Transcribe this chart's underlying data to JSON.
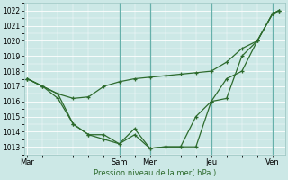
{
  "xlabel": "Pression niveau de la mer( hPa )",
  "bg_color": "#cce8e6",
  "grid_color": "#aad4d0",
  "vline_color": "#66b0aa",
  "line_color": "#2d6b2d",
  "ylim": [
    1012.5,
    1022.5
  ],
  "yticks": [
    1013,
    1014,
    1015,
    1016,
    1017,
    1018,
    1019,
    1020,
    1021,
    1022
  ],
  "xtick_labels": [
    "Mar",
    "Sam",
    "Mer",
    "Jeu",
    "Ven"
  ],
  "xtick_positions": [
    0,
    3.0,
    4.0,
    6.0,
    8.0
  ],
  "xmin": -0.1,
  "xmax": 8.4,
  "line1_x": [
    0,
    0.5,
    1.0,
    1.5,
    2.0,
    2.5,
    3.0,
    3.5,
    4.0,
    4.5,
    5.0,
    5.5,
    6.0,
    6.5,
    7.0,
    7.5,
    8.0,
    8.2
  ],
  "line1_y": [
    1017.5,
    1017.0,
    1016.5,
    1016.2,
    1016.3,
    1017.0,
    1017.3,
    1017.5,
    1017.6,
    1017.7,
    1017.8,
    1017.9,
    1018.0,
    1018.6,
    1019.5,
    1020.0,
    1021.8,
    1022.0
  ],
  "line2_x": [
    0,
    0.5,
    1.0,
    1.5,
    2.0,
    2.5,
    3.0,
    3.5,
    4.0,
    4.5,
    5.0,
    5.5,
    6.0,
    6.5,
    7.0,
    7.5,
    8.0,
    8.2
  ],
  "line2_y": [
    1017.5,
    1017.0,
    1016.5,
    1014.5,
    1013.8,
    1013.8,
    1013.2,
    1013.8,
    1012.9,
    1013.0,
    1013.0,
    1013.0,
    1016.0,
    1017.5,
    1018.0,
    1020.0,
    1021.8,
    1022.0
  ],
  "line3_x": [
    0,
    0.5,
    1.0,
    1.5,
    2.0,
    2.5,
    3.0,
    3.5,
    4.0,
    4.5,
    5.0,
    5.5,
    6.0,
    6.5,
    7.0,
    7.5,
    8.0,
    8.2
  ],
  "line3_y": [
    1017.5,
    1017.0,
    1016.2,
    1014.5,
    1013.8,
    1013.5,
    1013.2,
    1014.2,
    1012.9,
    1013.0,
    1013.0,
    1015.0,
    1016.0,
    1016.2,
    1019.0,
    1020.0,
    1021.8,
    1022.0
  ]
}
